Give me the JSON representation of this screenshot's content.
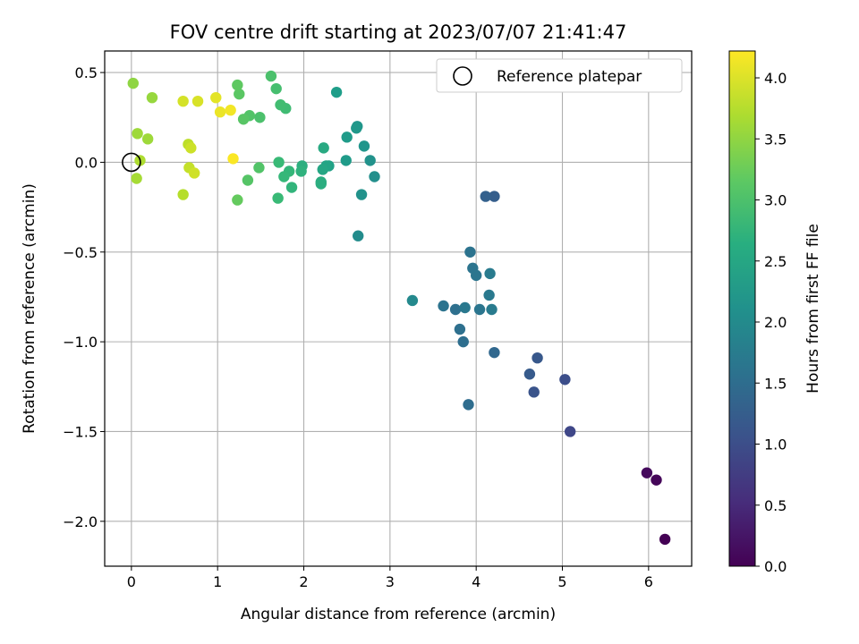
{
  "chart_data": {
    "type": "scatter",
    "title": "FOV centre drift starting at 2023/07/07 21:41:47",
    "xlabel": "Angular distance from reference (arcmin)",
    "ylabel": "Rotation from reference (arcmin)",
    "xlim": [
      -0.31,
      6.5
    ],
    "ylim": [
      -2.25,
      0.62
    ],
    "xticks": [
      0,
      1,
      2,
      3,
      4,
      5,
      6
    ],
    "yticks": [
      -2.0,
      -1.5,
      -1.0,
      -0.5,
      0.0,
      0.5
    ],
    "grid": true,
    "legend": {
      "label": "Reference platepar",
      "placement": "upper right"
    },
    "reference_point": {
      "x": 0,
      "y": 0
    },
    "colorbar": {
      "label": "Hours from first FF file",
      "colormap": "viridis",
      "range": [
        0,
        4.22
      ],
      "ticks": [
        0.0,
        0.5,
        1.0,
        1.5,
        2.0,
        2.5,
        3.0,
        3.5,
        4.0
      ]
    },
    "points": [
      {
        "x": 6.19,
        "y": -2.1,
        "c": 0.0
      },
      {
        "x": 6.09,
        "y": -1.77,
        "c": 0.06
      },
      {
        "x": 5.98,
        "y": -1.73,
        "c": 0.11
      },
      {
        "x": 5.09,
        "y": -1.5,
        "c": 0.9
      },
      {
        "x": 5.03,
        "y": -1.21,
        "c": 1.0
      },
      {
        "x": 4.67,
        "y": -1.28,
        "c": 1.1
      },
      {
        "x": 4.71,
        "y": -1.09,
        "c": 1.15
      },
      {
        "x": 4.62,
        "y": -1.18,
        "c": 1.2
      },
      {
        "x": 4.21,
        "y": -0.19,
        "c": 1.25
      },
      {
        "x": 4.11,
        "y": -0.19,
        "c": 1.3
      },
      {
        "x": 4.21,
        "y": -1.06,
        "c": 1.4
      },
      {
        "x": 3.91,
        "y": -1.35,
        "c": 1.5
      },
      {
        "x": 3.85,
        "y": -1.0,
        "c": 1.52
      },
      {
        "x": 3.81,
        "y": -0.93,
        "c": 1.55
      },
      {
        "x": 3.76,
        "y": -0.82,
        "c": 1.55
      },
      {
        "x": 3.62,
        "y": -0.8,
        "c": 1.6
      },
      {
        "x": 3.93,
        "y": -0.5,
        "c": 1.6
      },
      {
        "x": 3.96,
        "y": -0.59,
        "c": 1.62
      },
      {
        "x": 4.0,
        "y": -0.63,
        "c": 1.65
      },
      {
        "x": 4.04,
        "y": -0.82,
        "c": 1.65
      },
      {
        "x": 3.87,
        "y": -0.81,
        "c": 1.7
      },
      {
        "x": 4.15,
        "y": -0.74,
        "c": 1.72
      },
      {
        "x": 4.16,
        "y": -0.62,
        "c": 1.75
      },
      {
        "x": 4.18,
        "y": -0.82,
        "c": 1.75
      },
      {
        "x": 3.26,
        "y": -0.77,
        "c": 2.0
      },
      {
        "x": 2.63,
        "y": -0.41,
        "c": 2.05
      },
      {
        "x": 2.82,
        "y": -0.08,
        "c": 2.1
      },
      {
        "x": 2.77,
        "y": 0.01,
        "c": 2.15
      },
      {
        "x": 2.67,
        "y": -0.18,
        "c": 2.15
      },
      {
        "x": 2.7,
        "y": 0.09,
        "c": 2.2
      },
      {
        "x": 2.62,
        "y": 0.2,
        "c": 2.2
      },
      {
        "x": 2.61,
        "y": 0.19,
        "c": 2.25
      },
      {
        "x": 2.5,
        "y": 0.14,
        "c": 2.3
      },
      {
        "x": 2.49,
        "y": 0.01,
        "c": 2.3
      },
      {
        "x": 2.38,
        "y": 0.39,
        "c": 2.35
      },
      {
        "x": 2.29,
        "y": -0.02,
        "c": 2.4
      },
      {
        "x": 2.26,
        "y": -0.02,
        "c": 2.45
      },
      {
        "x": 2.22,
        "y": -0.04,
        "c": 2.5
      },
      {
        "x": 2.23,
        "y": 0.08,
        "c": 2.55
      },
      {
        "x": 2.2,
        "y": -0.11,
        "c": 2.6
      },
      {
        "x": 2.2,
        "y": -0.12,
        "c": 2.62
      },
      {
        "x": 1.98,
        "y": -0.02,
        "c": 2.65
      },
      {
        "x": 1.97,
        "y": -0.05,
        "c": 2.7
      },
      {
        "x": 1.86,
        "y": -0.14,
        "c": 2.75
      },
      {
        "x": 1.83,
        "y": -0.05,
        "c": 2.8
      },
      {
        "x": 1.77,
        "y": -0.08,
        "c": 2.82
      },
      {
        "x": 1.71,
        "y": 0.0,
        "c": 2.85
      },
      {
        "x": 1.7,
        "y": -0.2,
        "c": 2.85
      },
      {
        "x": 1.79,
        "y": 0.3,
        "c": 2.9
      },
      {
        "x": 1.73,
        "y": 0.32,
        "c": 2.92
      },
      {
        "x": 1.68,
        "y": 0.41,
        "c": 2.95
      },
      {
        "x": 1.62,
        "y": 0.48,
        "c": 3.0
      },
      {
        "x": 1.49,
        "y": 0.25,
        "c": 3.0
      },
      {
        "x": 1.48,
        "y": -0.03,
        "c": 3.05
      },
      {
        "x": 1.37,
        "y": 0.26,
        "c": 3.05
      },
      {
        "x": 1.35,
        "y": -0.1,
        "c": 3.08
      },
      {
        "x": 1.3,
        "y": 0.24,
        "c": 3.1
      },
      {
        "x": 1.25,
        "y": 0.38,
        "c": 3.12
      },
      {
        "x": 1.23,
        "y": 0.43,
        "c": 3.15
      },
      {
        "x": 1.23,
        "y": -0.21,
        "c": 3.2
      },
      {
        "x": 0.24,
        "y": 0.36,
        "c": 3.55
      },
      {
        "x": 0.02,
        "y": 0.44,
        "c": 3.5
      },
      {
        "x": 0.07,
        "y": 0.16,
        "c": 3.6
      },
      {
        "x": 0.19,
        "y": 0.13,
        "c": 3.6
      },
      {
        "x": 0.06,
        "y": -0.09,
        "c": 3.65
      },
      {
        "x": 0.1,
        "y": 0.01,
        "c": 3.7
      },
      {
        "x": 0.6,
        "y": -0.18,
        "c": 3.75
      },
      {
        "x": 0.66,
        "y": 0.1,
        "c": 3.8
      },
      {
        "x": 0.67,
        "y": -0.03,
        "c": 3.85
      },
      {
        "x": 0.69,
        "y": 0.08,
        "c": 3.9
      },
      {
        "x": 0.73,
        "y": -0.06,
        "c": 3.92
      },
      {
        "x": 0.6,
        "y": 0.34,
        "c": 3.95
      },
      {
        "x": 0.77,
        "y": 0.34,
        "c": 3.98
      },
      {
        "x": 0.98,
        "y": 0.36,
        "c": 4.05
      },
      {
        "x": 1.03,
        "y": 0.28,
        "c": 4.1
      },
      {
        "x": 1.15,
        "y": 0.29,
        "c": 4.15
      },
      {
        "x": 1.18,
        "y": 0.02,
        "c": 4.2
      }
    ]
  }
}
